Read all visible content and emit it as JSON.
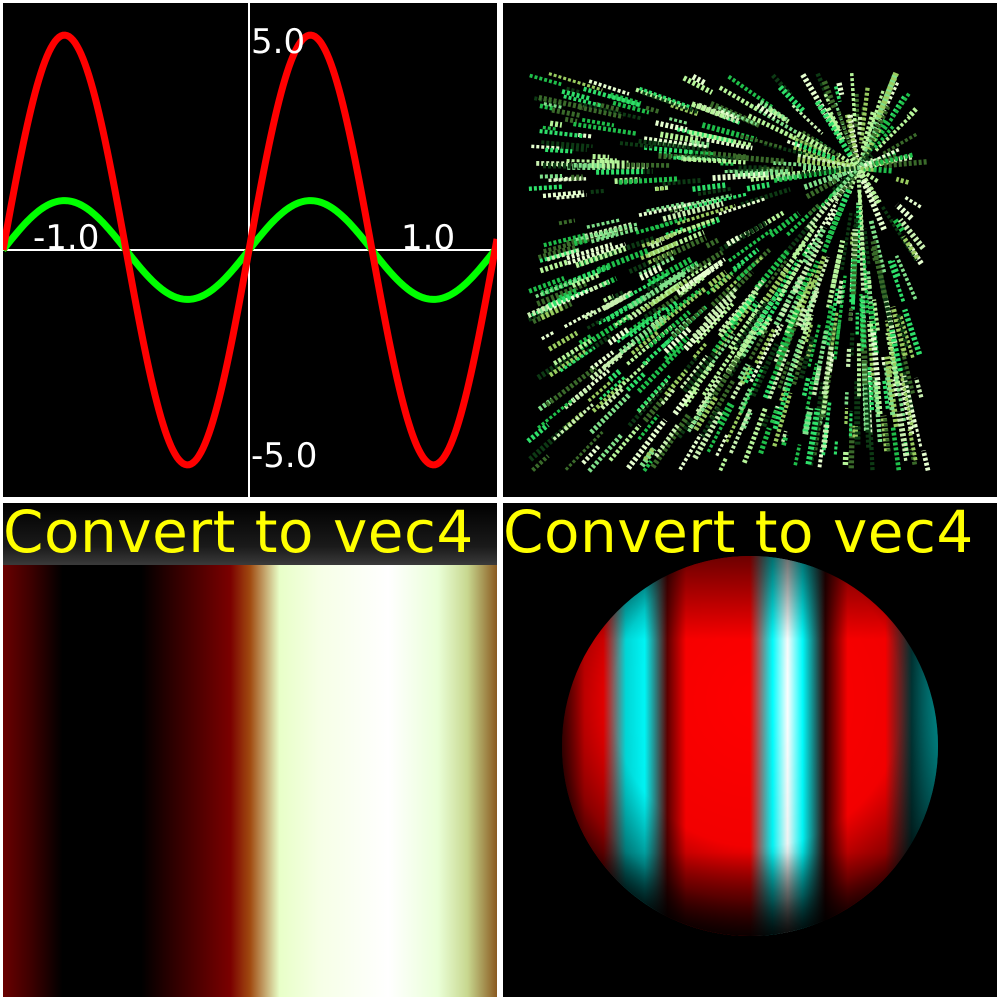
{
  "panels": {
    "plot": {
      "y_max_label": "5.0",
      "y_min_label": "-5.0",
      "x_min_label": "-1.0",
      "x_max_label": "1.0"
    },
    "band_caption": "Convert to vec4",
    "sphere_caption": "Convert to vec4"
  },
  "chart_data": {
    "type": "line",
    "xlim": [
      -1.0,
      1.0
    ],
    "ylim": [
      -5.0,
      5.0
    ],
    "series": [
      {
        "color": "#ff0000",
        "function": "4.2*sin(2*pi*x)"
      },
      {
        "color": "#00ff00",
        "function": "1.0*sin(2*pi*x)"
      }
    ]
  },
  "colors": {
    "background": "#000000",
    "separator": "#ffffff",
    "caption": "#ffff00",
    "sphere_red": "#ff0000",
    "sphere_cyan": "#00ffff"
  }
}
